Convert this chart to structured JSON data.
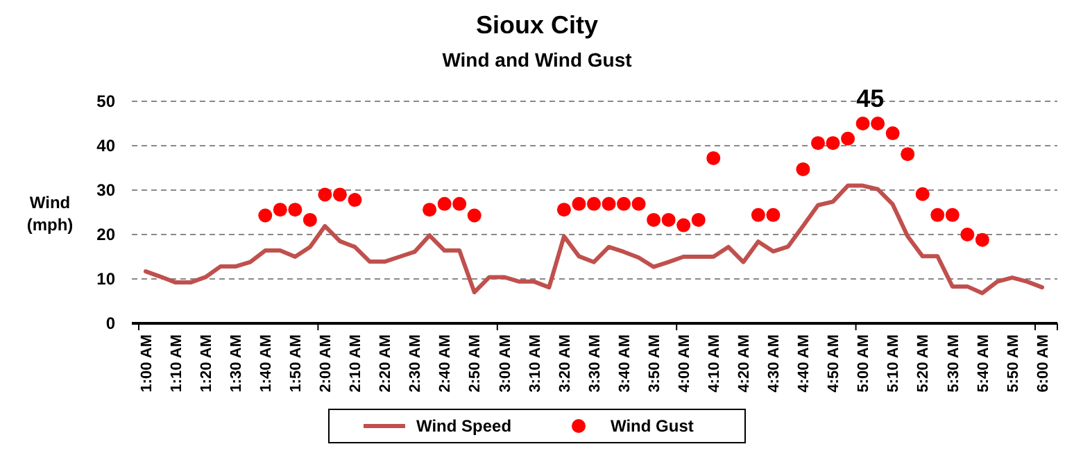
{
  "chart_data": {
    "type": "line",
    "title": "Sioux City",
    "subtitle": "Wind and Wind Gust",
    "ylabel": "Wind (mph)",
    "categories": [
      "1:00 AM",
      null,
      "1:10 AM",
      null,
      "1:20 AM",
      null,
      "1:30 AM",
      null,
      "1:40 AM",
      null,
      "1:50 AM",
      null,
      "2:00 AM",
      null,
      "2:10 AM",
      null,
      "2:20 AM",
      null,
      "2:30 AM",
      null,
      "2:40 AM",
      null,
      "2:50 AM",
      null,
      "3:00 AM",
      null,
      "3:10 AM",
      null,
      "3:20 AM",
      null,
      "3:30 AM",
      null,
      "3:40 AM",
      null,
      "3:50 AM",
      null,
      "4:00 AM",
      null,
      "4:10 AM",
      null,
      "4:20 AM",
      null,
      "4:30 AM",
      null,
      "4:40 AM",
      null,
      "4:50 AM",
      null,
      "5:00 AM",
      null,
      "5:10 AM",
      null,
      "5:20 AM",
      null,
      "5:30 AM",
      null,
      "5:40 AM",
      null,
      "5:50 AM",
      null,
      "6:00 AM"
    ],
    "series": [
      {
        "name": "Wind Speed",
        "color": "#c0504d",
        "values": [
          11.7,
          10.5,
          9.2,
          9.2,
          10.4,
          12.8,
          12.8,
          13.8,
          16.4,
          16.4,
          15.0,
          17.2,
          21.9,
          18.5,
          17.2,
          13.9,
          13.9,
          15.0,
          16.1,
          19.8,
          16.4,
          16.4,
          7.0,
          10.4,
          10.4,
          9.4,
          9.4,
          8.1,
          19.6,
          15.1,
          13.8,
          17.2,
          16.1,
          14.8,
          12.7,
          13.8,
          15.0,
          15.0,
          15.0,
          17.2,
          13.8,
          18.4,
          16.2,
          17.3,
          21.9,
          26.6,
          27.4,
          31.0,
          31.0,
          30.2,
          26.8,
          19.6,
          15.1,
          15.1,
          8.3,
          8.3,
          6.8,
          9.4,
          10.3,
          9.4,
          8.1
        ]
      },
      {
        "name": "Wind Gust",
        "type": "scatter",
        "marker": "circle",
        "color": "#ff0000",
        "values": [
          null,
          null,
          null,
          null,
          null,
          null,
          null,
          null,
          24.3,
          25.6,
          25.6,
          23.3,
          29.0,
          29.0,
          27.8,
          null,
          null,
          null,
          null,
          25.6,
          26.9,
          26.9,
          24.3,
          null,
          null,
          null,
          null,
          null,
          25.6,
          26.9,
          26.9,
          26.9,
          26.9,
          26.9,
          23.3,
          23.3,
          22.1,
          23.3,
          37.2,
          null,
          null,
          24.4,
          24.4,
          null,
          34.7,
          40.6,
          40.6,
          41.6,
          45,
          45,
          42.8,
          38.1,
          29.1,
          24.4,
          24.4,
          20.0,
          18.8,
          null,
          null,
          null,
          null
        ]
      }
    ],
    "annotations": [
      {
        "text": "45",
        "x": "5:00 AM",
        "y": 45
      }
    ],
    "ylim": [
      0,
      50
    ],
    "yticks": [
      0,
      10,
      20,
      30,
      40,
      50
    ],
    "grid": "y",
    "legend": "bottom"
  }
}
